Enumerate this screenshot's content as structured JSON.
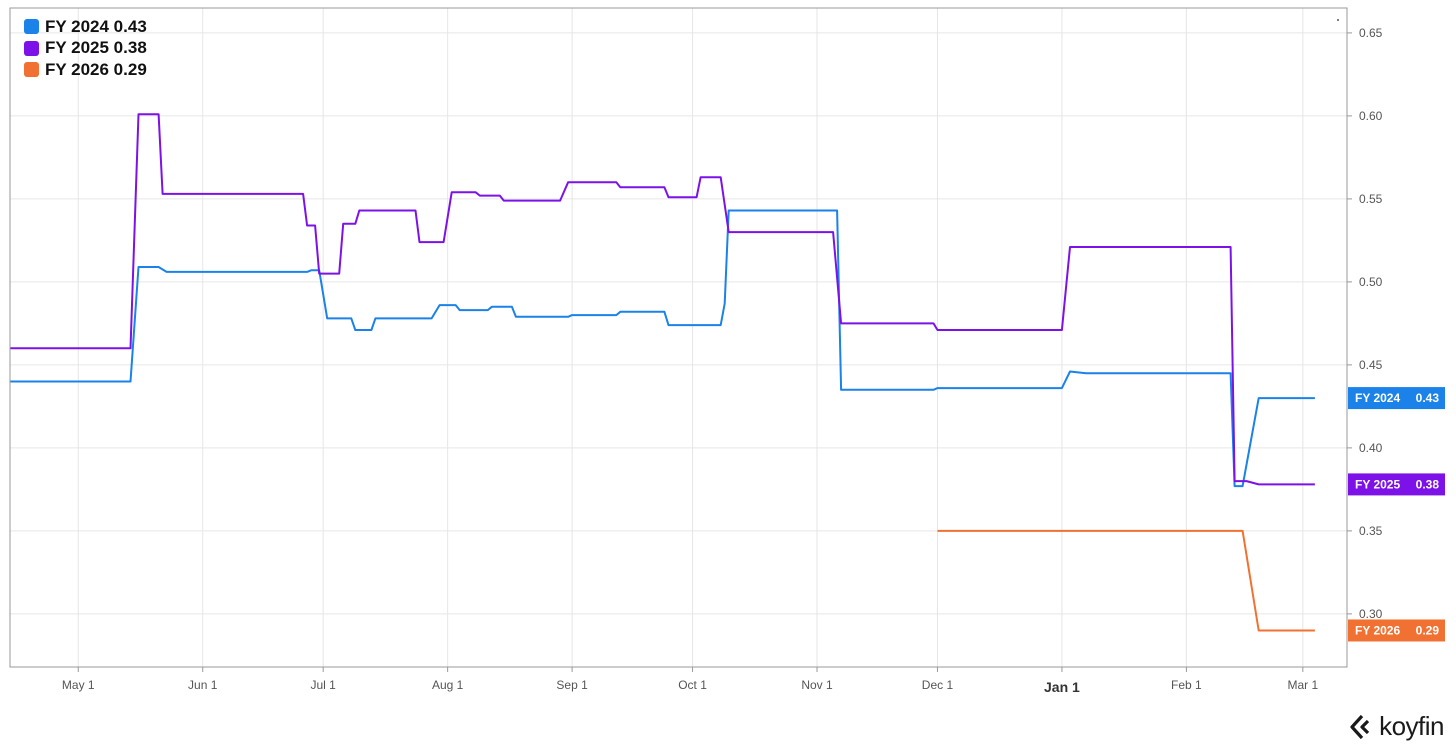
{
  "brand": {
    "name": "koyfin"
  },
  "colors": {
    "fy2024": "#1a82e8",
    "fy2025": "#7d12e8",
    "fy2026": "#f07132",
    "grid": "#e6e6e6",
    "axis": "#777777"
  },
  "legend": [
    {
      "label": "FY 2024 0.43",
      "color": "#1a82e8"
    },
    {
      "label": "FY 2025 0.38",
      "color": "#7d12e8"
    },
    {
      "label": "FY 2026 0.29",
      "color": "#f07132"
    }
  ],
  "chart_data": {
    "type": "line",
    "title": "",
    "xlabel": "",
    "ylabel": "",
    "ylim": [
      0.268,
      0.665
    ],
    "xlim": [
      "2023-04-14",
      "2024-03-12"
    ],
    "y_ticks": [
      "0.30",
      "0.35",
      "0.40",
      "0.45",
      "0.50",
      "0.55",
      "0.60",
      "0.65"
    ],
    "x_ticks": [
      {
        "label": "May 1",
        "date": "2023-05-01"
      },
      {
        "label": "Jun 1",
        "date": "2023-06-01"
      },
      {
        "label": "Jul 1",
        "date": "2023-07-01"
      },
      {
        "label": "Aug 1",
        "date": "2023-08-01"
      },
      {
        "label": "Sep 1",
        "date": "2023-09-01"
      },
      {
        "label": "Oct 1",
        "date": "2023-10-01"
      },
      {
        "label": "Nov 1",
        "date": "2023-11-01"
      },
      {
        "label": "Dec 1",
        "date": "2023-12-01"
      },
      {
        "label": "Jan 1",
        "date": "2024-01-01",
        "major": true
      },
      {
        "label": "Feb 1",
        "date": "2024-02-01"
      },
      {
        "label": "Mar 1",
        "date": "2024-03-01"
      }
    ],
    "grid": true,
    "legend_position": "top-left",
    "series": [
      {
        "name": "FY 2024",
        "color": "#1a82e8",
        "last_value_label": "0.43",
        "points": [
          [
            "2023-04-14",
            0.44
          ],
          [
            "2023-05-14",
            0.44
          ],
          [
            "2023-05-16",
            0.509
          ],
          [
            "2023-05-21",
            0.509
          ],
          [
            "2023-05-23",
            0.506
          ],
          [
            "2023-06-27",
            0.506
          ],
          [
            "2023-06-28",
            0.507
          ],
          [
            "2023-06-30",
            0.507
          ],
          [
            "2023-07-02",
            0.478
          ],
          [
            "2023-07-08",
            0.478
          ],
          [
            "2023-07-09",
            0.471
          ],
          [
            "2023-07-13",
            0.471
          ],
          [
            "2023-07-14",
            0.478
          ],
          [
            "2023-07-28",
            0.478
          ],
          [
            "2023-07-30",
            0.486
          ],
          [
            "2023-08-03",
            0.486
          ],
          [
            "2023-08-04",
            0.483
          ],
          [
            "2023-08-11",
            0.483
          ],
          [
            "2023-08-12",
            0.485
          ],
          [
            "2023-08-17",
            0.485
          ],
          [
            "2023-08-18",
            0.479
          ],
          [
            "2023-08-31",
            0.479
          ],
          [
            "2023-09-01",
            0.48
          ],
          [
            "2023-09-12",
            0.48
          ],
          [
            "2023-09-13",
            0.482
          ],
          [
            "2023-09-24",
            0.482
          ],
          [
            "2023-09-25",
            0.474
          ],
          [
            "2023-10-04",
            0.474
          ],
          [
            "2023-10-08",
            0.474
          ],
          [
            "2023-10-09",
            0.487
          ],
          [
            "2023-10-10",
            0.543
          ],
          [
            "2023-11-06",
            0.543
          ],
          [
            "2023-11-07",
            0.435
          ],
          [
            "2023-11-30",
            0.435
          ],
          [
            "2023-12-01",
            0.436
          ],
          [
            "2024-01-01",
            0.436
          ],
          [
            "2024-01-03",
            0.446
          ],
          [
            "2024-01-07",
            0.445
          ],
          [
            "2024-02-12",
            0.445
          ],
          [
            "2024-02-13",
            0.377
          ],
          [
            "2024-02-15",
            0.377
          ],
          [
            "2024-02-19",
            0.43
          ],
          [
            "2024-03-04",
            0.43
          ]
        ]
      },
      {
        "name": "FY 2025",
        "color": "#7d12e8",
        "last_value_label": "0.38",
        "points": [
          [
            "2023-04-14",
            0.46
          ],
          [
            "2023-05-14",
            0.46
          ],
          [
            "2023-05-16",
            0.601
          ],
          [
            "2023-05-21",
            0.601
          ],
          [
            "2023-05-22",
            0.553
          ],
          [
            "2023-06-26",
            0.553
          ],
          [
            "2023-06-27",
            0.534
          ],
          [
            "2023-06-29",
            0.534
          ],
          [
            "2023-06-30",
            0.505
          ],
          [
            "2023-07-05",
            0.505
          ],
          [
            "2023-07-06",
            0.535
          ],
          [
            "2023-07-09",
            0.535
          ],
          [
            "2023-07-10",
            0.543
          ],
          [
            "2023-07-24",
            0.543
          ],
          [
            "2023-07-25",
            0.524
          ],
          [
            "2023-07-31",
            0.524
          ],
          [
            "2023-08-02",
            0.554
          ],
          [
            "2023-08-08",
            0.554
          ],
          [
            "2023-08-09",
            0.552
          ],
          [
            "2023-08-14",
            0.552
          ],
          [
            "2023-08-15",
            0.549
          ],
          [
            "2023-08-29",
            0.549
          ],
          [
            "2023-08-31",
            0.56
          ],
          [
            "2023-09-12",
            0.56
          ],
          [
            "2023-09-13",
            0.557
          ],
          [
            "2023-09-24",
            0.557
          ],
          [
            "2023-09-25",
            0.551
          ],
          [
            "2023-10-02",
            0.551
          ],
          [
            "2023-10-03",
            0.563
          ],
          [
            "2023-10-08",
            0.563
          ],
          [
            "2023-10-10",
            0.53
          ],
          [
            "2023-11-05",
            0.53
          ],
          [
            "2023-11-07",
            0.475
          ],
          [
            "2023-11-30",
            0.475
          ],
          [
            "2023-12-01",
            0.471
          ],
          [
            "2024-01-01",
            0.471
          ],
          [
            "2024-01-03",
            0.521
          ],
          [
            "2024-02-12",
            0.521
          ],
          [
            "2024-02-13",
            0.38
          ],
          [
            "2024-02-16",
            0.38
          ],
          [
            "2024-02-19",
            0.378
          ],
          [
            "2024-03-04",
            0.378
          ]
        ]
      },
      {
        "name": "FY 2026",
        "color": "#f07132",
        "last_value_label": "0.29",
        "points": [
          [
            "2023-12-01",
            0.35
          ],
          [
            "2024-02-15",
            0.35
          ],
          [
            "2024-02-19",
            0.29
          ],
          [
            "2024-03-04",
            0.29
          ]
        ]
      }
    ]
  }
}
